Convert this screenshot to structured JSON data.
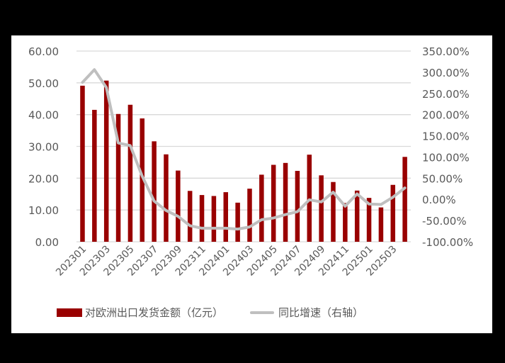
{
  "chart_data": {
    "type": "bar+line",
    "title": "",
    "categories": [
      "202301",
      "202302",
      "202303",
      "202304",
      "202305",
      "202306",
      "202307",
      "202308",
      "202309",
      "202310",
      "202311",
      "202312",
      "202401",
      "202402",
      "202403",
      "202404",
      "202405",
      "202406",
      "202407",
      "202408",
      "202409",
      "202410",
      "202411",
      "202412",
      "202501",
      "202502",
      "202503",
      "202504"
    ],
    "x_tick_labels": [
      "202301",
      "202303",
      "202305",
      "202307",
      "202309",
      "202311",
      "202401",
      "202403",
      "202405",
      "202407",
      "202409",
      "202411",
      "202501",
      "202503"
    ],
    "series": [
      {
        "name": "对欧洲出口发货金额（亿元）",
        "type": "bar",
        "axis": "left",
        "color": "#990000",
        "values": [
          49.1,
          41.5,
          50.7,
          40.2,
          43.1,
          38.8,
          31.6,
          27.5,
          22.4,
          16.0,
          14.7,
          14.4,
          15.6,
          12.3,
          16.7,
          21.1,
          24.2,
          24.8,
          22.3,
          27.4,
          20.9,
          18.8,
          12.2,
          16.1,
          13.8,
          10.8,
          17.9,
          26.7
        ]
      },
      {
        "name": "同比增速（右轴）",
        "type": "line",
        "axis": "right",
        "color": "#bfbfbf",
        "values": [
          276,
          306,
          264,
          133,
          127,
          55,
          -4,
          -26,
          -40,
          -62,
          -68,
          -68,
          -68,
          -70,
          -65,
          -48,
          -44,
          -36,
          -29,
          -1,
          -6,
          17,
          -16,
          13,
          -11,
          -12,
          5,
          27
        ]
      }
    ],
    "left_axis": {
      "ylim": [
        0,
        60
      ],
      "ticks": [
        "60.00",
        "50.00",
        "40.00",
        "30.00",
        "20.00",
        "10.00",
        "0.00"
      ]
    },
    "right_axis": {
      "ylim": [
        -100,
        350
      ],
      "unit": "%",
      "ticks": [
        "350.00%",
        "300.00%",
        "250.00%",
        "200.00%",
        "150.00%",
        "100.00%",
        "50.00%",
        "0.00%",
        "-50.00%",
        "-100.00%"
      ]
    },
    "xlabel": "",
    "ylabel": "",
    "grid": true,
    "legend_position": "bottom"
  },
  "legend": {
    "bar_label": "对欧洲出口发货金额（亿元）",
    "line_label": "同比增速（右轴）"
  }
}
